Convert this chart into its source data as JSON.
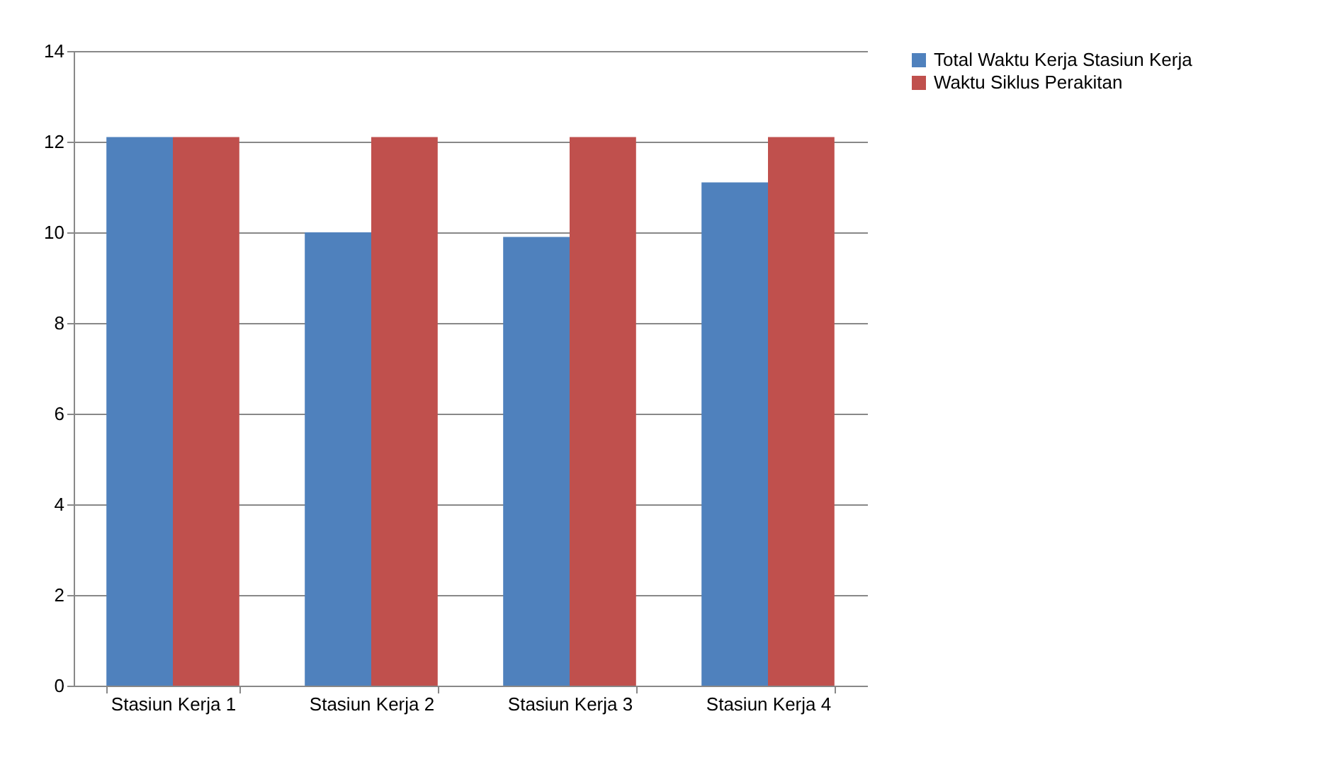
{
  "chart_data": {
    "type": "bar",
    "categories": [
      "Stasiun Kerja 1",
      "Stasiun Kerja 2",
      "Stasiun Kerja 3",
      "Stasiun Kerja 4"
    ],
    "series": [
      {
        "name": "Total Waktu  Kerja Stasiun Kerja",
        "color": "#4f81bd",
        "values": [
          12.1,
          10.0,
          9.9,
          11.1
        ]
      },
      {
        "name": "Waktu Siklus Perakitan",
        "color": "#c0504d",
        "values": [
          12.1,
          12.1,
          12.1,
          12.1
        ]
      }
    ],
    "ylim": [
      0,
      14
    ],
    "yticks": [
      0,
      2,
      4,
      6,
      8,
      10,
      12,
      14
    ],
    "grid": "y",
    "legend": "right"
  }
}
